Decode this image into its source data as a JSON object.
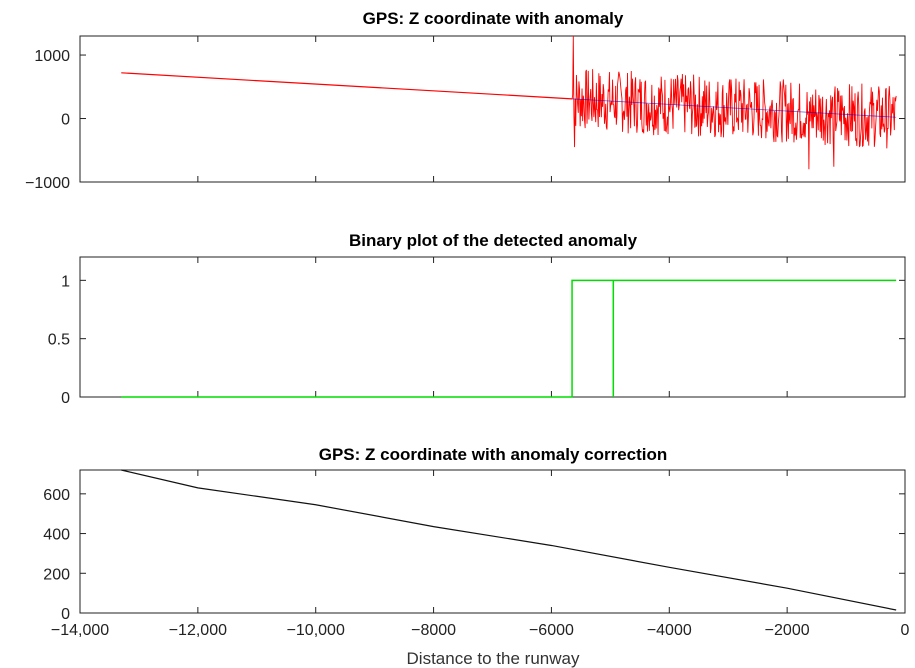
{
  "chart_data": [
    {
      "type": "line",
      "title": "GPS: Z coordinate with anomaly",
      "xlabel": "",
      "ylabel": "",
      "xlim": [
        -14000,
        0
      ],
      "ylim": [
        -1000,
        1300
      ],
      "yticks": [
        -1000,
        0,
        1000
      ],
      "ytick_labels": [
        "−1000",
        "0",
        "1000"
      ],
      "xticks": [
        -14000,
        -12000,
        -10000,
        -8000,
        -6000,
        -4000,
        -2000,
        0
      ],
      "xtick_labels": [],
      "grid": false,
      "colors": {
        "signal": "#ff0000",
        "baseline": "#0000cc"
      },
      "series": [
        {
          "x": [
            -13300,
            -5650
          ],
          "y": [
            720,
            310
          ],
          "note_segment": "smooth"
        },
        {
          "noisy_range": [
            -5650,
            -150
          ],
          "trend": [
            [
              -5650,
              310
            ],
            [
              -150,
              20
            ]
          ],
          "amplitude": 500,
          "spike_max": 1300,
          "spike_min": -800
        }
      ]
    },
    {
      "type": "line",
      "title": "Binary plot of the detected anomaly",
      "xlabel": "",
      "ylabel": "",
      "xlim": [
        -14000,
        0
      ],
      "ylim": [
        0,
        1.2
      ],
      "yticks": [
        0,
        0.5,
        1
      ],
      "ytick_labels": [
        "0",
        "0.5",
        "1"
      ],
      "xticks": [
        -14000,
        -12000,
        -10000,
        -8000,
        -6000,
        -4000,
        -2000,
        0
      ],
      "xtick_labels": [],
      "grid": false,
      "colors": {
        "signal": "#00dd00"
      },
      "series": [
        {
          "x": [
            -13300,
            -5650,
            -5650,
            -4950,
            -4950,
            -4950,
            -150
          ],
          "y": [
            0,
            0,
            1,
            1,
            0,
            1,
            1
          ]
        }
      ]
    },
    {
      "type": "line",
      "title": "GPS: Z coordinate with anomaly correction",
      "xlabel": "Distance to the runway",
      "ylabel": "",
      "xlim": [
        -14000,
        0
      ],
      "ylim": [
        0,
        720
      ],
      "yticks": [
        0,
        200,
        400,
        600
      ],
      "ytick_labels": [
        "0",
        "200",
        "400",
        "600"
      ],
      "xticks": [
        -14000,
        -12000,
        -10000,
        -8000,
        -6000,
        -4000,
        -2000,
        0
      ],
      "xtick_labels": [
        "−14,000",
        "−12,000",
        "−10,000",
        "−8000",
        "−6000",
        "−4000",
        "−2000",
        "0"
      ],
      "grid": false,
      "colors": {
        "signal": "#111111"
      },
      "series": [
        {
          "x": [
            -13300,
            -12000,
            -10000,
            -8000,
            -6000,
            -4000,
            -2000,
            -150
          ],
          "y": [
            720,
            630,
            545,
            435,
            340,
            230,
            125,
            15
          ]
        }
      ]
    }
  ]
}
